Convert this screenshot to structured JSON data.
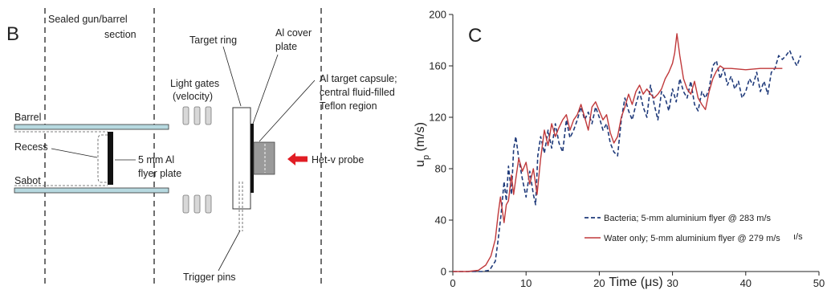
{
  "panel_b": {
    "letter": "B",
    "sealed_line1": "Sealed gun/barrel",
    "sealed_line2": "section",
    "target_ring": "Target ring",
    "al_cover_line1": "Al cover",
    "al_cover_line2": "plate",
    "al_capsule_line1": "Al target capsule;",
    "al_capsule_line2": "central fluid-filled",
    "al_capsule_line3": "Teflon region",
    "light_gates_line1": "Light gates",
    "light_gates_line2": "(velocity)",
    "barrel": "Barrel",
    "recess": "Recess",
    "sabot": "Sabot",
    "flyer_line1": "5 mm Al",
    "flyer_line2": "flyer plate",
    "hetv": "Het-v probe",
    "trigger": "Trigger pins"
  },
  "panel_c": {
    "letter": "C",
    "ylabel_main": "u",
    "ylabel_sub": "p",
    "ylabel_unit": " (m/s)",
    "xlabel": "Time (μs)",
    "legend_overflow": "ı/s"
  },
  "colors": {
    "bacteria": "#1f3a7a",
    "water": "#c0393b",
    "barrel_fill": "#b7d9e0",
    "arrow": "#e11d24",
    "capsule": "#9a9a9a"
  },
  "chart_data": {
    "type": "line",
    "xlabel": "Time (μs)",
    "ylabel": "up (m/s)",
    "xlim": [
      0,
      50
    ],
    "ylim": [
      0,
      200
    ],
    "xticks": [
      0,
      10,
      20,
      30,
      40,
      50
    ],
    "yticks": [
      0,
      40,
      80,
      120,
      160,
      200
    ],
    "grid": false,
    "legend": "bottom-right",
    "series": [
      {
        "name": "Bacteria; 5-mm aluminium flyer @ 283 m/s",
        "style": "dashed",
        "color": "#1f3a7a",
        "points": [
          [
            0,
            0
          ],
          [
            4,
            0
          ],
          [
            5,
            1
          ],
          [
            5.8,
            8
          ],
          [
            6.2,
            25
          ],
          [
            6.6,
            45
          ],
          [
            7,
            70
          ],
          [
            7.3,
            55
          ],
          [
            7.6,
            82
          ],
          [
            8,
            60
          ],
          [
            8.3,
            95
          ],
          [
            8.6,
            105
          ],
          [
            9,
            88
          ],
          [
            9.5,
            72
          ],
          [
            10,
            58
          ],
          [
            10.5,
            78
          ],
          [
            11,
            60
          ],
          [
            11.3,
            52
          ],
          [
            11.6,
            90
          ],
          [
            12,
            105
          ],
          [
            12.5,
            92
          ],
          [
            13,
            110
          ],
          [
            13.5,
            96
          ],
          [
            14,
            115
          ],
          [
            14.5,
            100
          ],
          [
            15,
            93
          ],
          [
            15.5,
            118
          ],
          [
            16,
            104
          ],
          [
            16.5,
            110
          ],
          [
            17,
            118
          ],
          [
            17.5,
            128
          ],
          [
            18,
            118
          ],
          [
            18.5,
            124
          ],
          [
            19,
            115
          ],
          [
            19.5,
            128
          ],
          [
            20,
            120
          ],
          [
            20.5,
            110
          ],
          [
            21,
            115
          ],
          [
            21.5,
            100
          ],
          [
            22,
            93
          ],
          [
            22.5,
            90
          ],
          [
            23,
            118
          ],
          [
            23.5,
            135
          ],
          [
            24,
            125
          ],
          [
            24.5,
            118
          ],
          [
            25,
            130
          ],
          [
            25.5,
            140
          ],
          [
            26,
            128
          ],
          [
            26.5,
            120
          ],
          [
            27,
            145
          ],
          [
            27.5,
            130
          ],
          [
            28,
            118
          ],
          [
            28.5,
            140
          ],
          [
            29,
            135
          ],
          [
            29.5,
            125
          ],
          [
            30,
            142
          ],
          [
            30.5,
            132
          ],
          [
            31,
            150
          ],
          [
            31.5,
            140
          ],
          [
            32,
            135
          ],
          [
            32.5,
            148
          ],
          [
            33,
            130
          ],
          [
            33.5,
            125
          ],
          [
            34,
            140
          ],
          [
            34.5,
            135
          ],
          [
            35,
            142
          ],
          [
            35.5,
            160
          ],
          [
            36,
            164
          ],
          [
            36.5,
            150
          ],
          [
            37,
            158
          ],
          [
            37.5,
            145
          ],
          [
            38,
            152
          ],
          [
            38.5,
            142
          ],
          [
            39,
            148
          ],
          [
            39.5,
            135
          ],
          [
            40,
            140
          ],
          [
            40.5,
            150
          ],
          [
            41,
            145
          ],
          [
            41.5,
            155
          ],
          [
            42,
            140
          ],
          [
            42.5,
            148
          ],
          [
            43,
            138
          ],
          [
            43.5,
            155
          ],
          [
            44,
            158
          ],
          [
            44.5,
            168
          ],
          [
            45,
            165
          ],
          [
            45.5,
            168
          ],
          [
            46,
            172
          ],
          [
            46.5,
            165
          ],
          [
            47,
            160
          ],
          [
            47.5,
            168
          ]
        ]
      },
      {
        "name": "Water only; 5-mm aluminium flyer @ 279 m/s",
        "style": "solid",
        "color": "#c0393b",
        "points": [
          [
            0,
            0
          ],
          [
            2,
            0
          ],
          [
            3.5,
            1
          ],
          [
            4.5,
            5
          ],
          [
            5.2,
            12
          ],
          [
            5.8,
            25
          ],
          [
            6.2,
            45
          ],
          [
            6.5,
            58
          ],
          [
            7,
            38
          ],
          [
            7.3,
            52
          ],
          [
            7.6,
            55
          ],
          [
            8,
            75
          ],
          [
            8.3,
            60
          ],
          [
            8.6,
            72
          ],
          [
            9,
            88
          ],
          [
            9.5,
            78
          ],
          [
            10,
            85
          ],
          [
            10.5,
            68
          ],
          [
            11,
            80
          ],
          [
            11.5,
            60
          ],
          [
            12,
            88
          ],
          [
            12.5,
            110
          ],
          [
            13,
            98
          ],
          [
            13.5,
            115
          ],
          [
            14,
            105
          ],
          [
            14.5,
            112
          ],
          [
            15,
            118
          ],
          [
            15.5,
            122
          ],
          [
            16,
            110
          ],
          [
            16.5,
            118
          ],
          [
            17,
            122
          ],
          [
            17.5,
            130
          ],
          [
            18,
            120
          ],
          [
            18.5,
            110
          ],
          [
            19,
            128
          ],
          [
            19.5,
            132
          ],
          [
            20,
            125
          ],
          [
            20.5,
            118
          ],
          [
            21,
            122
          ],
          [
            21.5,
            108
          ],
          [
            22,
            100
          ],
          [
            22.5,
            105
          ],
          [
            23,
            120
          ],
          [
            23.5,
            128
          ],
          [
            24,
            138
          ],
          [
            24.5,
            130
          ],
          [
            25,
            140
          ],
          [
            25.5,
            145
          ],
          [
            26,
            138
          ],
          [
            26.5,
            142
          ],
          [
            27,
            138
          ],
          [
            27.5,
            135
          ],
          [
            28,
            138
          ],
          [
            28.5,
            142
          ],
          [
            29,
            150
          ],
          [
            29.5,
            155
          ],
          [
            30,
            162
          ],
          [
            30.3,
            170
          ],
          [
            30.6,
            185
          ],
          [
            31,
            168
          ],
          [
            31.5,
            150
          ],
          [
            32,
            142
          ],
          [
            32.5,
            138
          ],
          [
            33,
            148
          ],
          [
            33.5,
            135
          ],
          [
            34,
            130
          ],
          [
            34.5,
            126
          ],
          [
            35,
            140
          ],
          [
            35.5,
            150
          ],
          [
            36,
            156
          ],
          [
            36.5,
            160
          ],
          [
            37,
            158
          ],
          [
            38,
            158
          ],
          [
            40,
            157
          ],
          [
            42,
            158
          ],
          [
            43,
            158
          ],
          [
            44,
            158
          ],
          [
            45,
            158
          ]
        ]
      }
    ]
  }
}
